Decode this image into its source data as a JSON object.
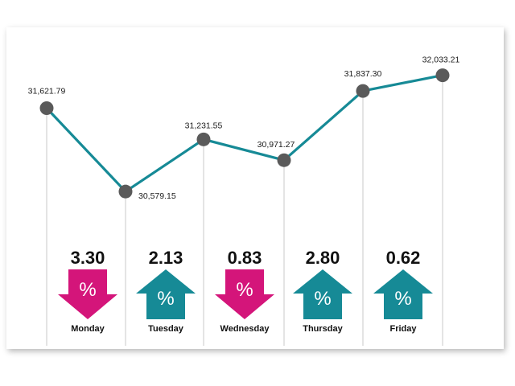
{
  "chart_data": {
    "type": "line",
    "categories": [
      "Monday",
      "Tuesday",
      "Wednesday",
      "Thursday",
      "Friday",
      ""
    ],
    "values": [
      31621.79,
      30579.15,
      31231.55,
      30971.27,
      31837.3,
      32033.21
    ],
    "point_labels": [
      "31,621.79",
      "30,579.15",
      "31,231.55",
      "30,971.27",
      "31,837.30",
      "32,033.21"
    ],
    "daily_change": [
      {
        "day": "Monday",
        "value": "3.30",
        "direction": "down"
      },
      {
        "day": "Tuesday",
        "value": "2.13",
        "direction": "up"
      },
      {
        "day": "Wednesday",
        "value": "0.83",
        "direction": "down"
      },
      {
        "day": "Thursday",
        "value": "2.80",
        "direction": "up"
      },
      {
        "day": "Friday",
        "value": "0.62",
        "direction": "up"
      }
    ],
    "percent_symbol": "%",
    "ylim": [
      30400,
      32150
    ],
    "grid": false,
    "colors": {
      "line": "#168a96",
      "marker": "#5a5a5a",
      "up": "#168a96",
      "down": "#d4157a",
      "drop_line": "#c8c8c8"
    }
  }
}
